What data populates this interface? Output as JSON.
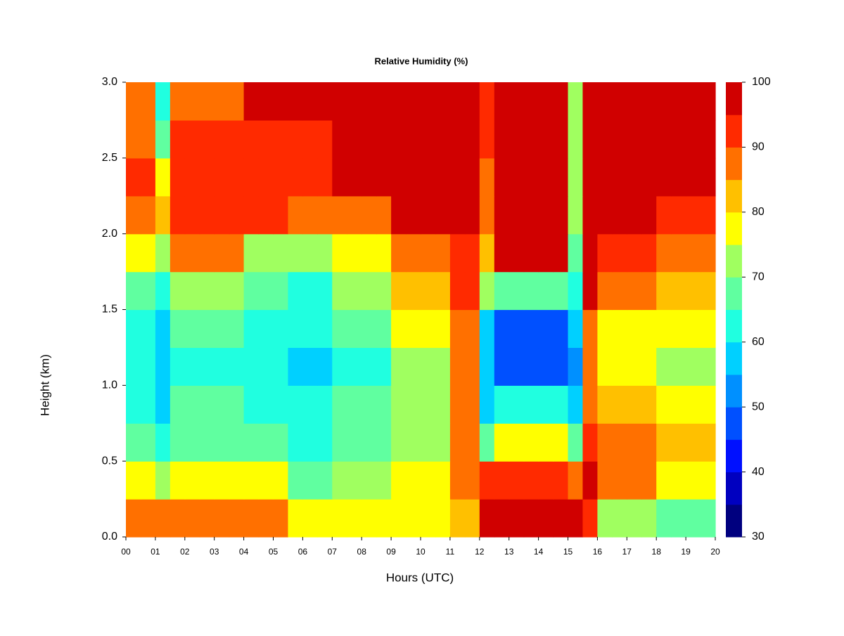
{
  "chart_data": {
    "type": "contour",
    "title": "Relative Humidity (%)",
    "x_label": "Hours (UTC)",
    "y_label": "Height (km)",
    "xlim": [
      0,
      20
    ],
    "ylim": [
      0,
      3
    ],
    "xticks": [
      {
        "value": 0,
        "label": "00"
      },
      {
        "value": 1,
        "label": "01"
      },
      {
        "value": 2,
        "label": "02"
      },
      {
        "value": 3,
        "label": "03"
      },
      {
        "value": 4,
        "label": "04"
      },
      {
        "value": 5,
        "label": "05"
      },
      {
        "value": 6,
        "label": "06"
      },
      {
        "value": 7,
        "label": "07"
      },
      {
        "value": 8,
        "label": "08"
      },
      {
        "value": 9,
        "label": "09"
      },
      {
        "value": 10,
        "label": "10"
      },
      {
        "value": 11,
        "label": "11"
      },
      {
        "value": 12,
        "label": "12"
      },
      {
        "value": 13,
        "label": "13"
      },
      {
        "value": 14,
        "label": "14"
      },
      {
        "value": 15,
        "label": "15"
      },
      {
        "value": 16,
        "label": "16"
      },
      {
        "value": 17,
        "label": "17"
      },
      {
        "value": 18,
        "label": "18"
      },
      {
        "value": 19,
        "label": "19"
      },
      {
        "value": 20,
        "label": "20"
      }
    ],
    "yticks": [
      {
        "value": 0,
        "label": "0.0"
      },
      0.5,
      {
        "value": 1,
        "label": "1.0"
      },
      1.5,
      {
        "value": 2,
        "label": "2.0"
      },
      2.5,
      {
        "value": 3,
        "label": "3.0"
      }
    ],
    "x": [
      0,
      0.5,
      1,
      1.5,
      2,
      2.5,
      3,
      3.5,
      4,
      4.5,
      5,
      5.5,
      6,
      6.5,
      7,
      7.5,
      8,
      8.5,
      9,
      9.5,
      10,
      10.5,
      11,
      11.5,
      12,
      12.5,
      13,
      13.5,
      14,
      14.5,
      15,
      15.5,
      16,
      16.5,
      17,
      17.5,
      18,
      18.5,
      19,
      19.5
    ],
    "y": [
      0,
      0.25,
      0.5,
      0.75,
      1,
      1.25,
      1.5,
      1.75,
      2,
      2.25,
      2.5,
      2.75
    ],
    "z": [
      [
        85,
        85,
        85,
        87,
        87,
        87,
        87,
        87,
        86,
        86,
        86,
        75,
        75,
        75,
        75,
        75,
        75,
        75,
        75,
        75,
        75,
        75,
        80,
        80,
        95,
        97,
        97,
        97,
        97,
        97,
        95,
        92,
        70,
        70,
        70,
        70,
        65,
        65,
        65,
        65
      ],
      [
        75,
        75,
        70,
        78,
        78,
        78,
        78,
        78,
        75,
        75,
        75,
        68,
        68,
        68,
        72,
        72,
        72,
        72,
        78,
        78,
        78,
        78,
        85,
        85,
        90,
        90,
        90,
        90,
        90,
        90,
        88,
        97,
        85,
        85,
        85,
        85,
        78,
        78,
        78,
        78
      ],
      [
        65,
        65,
        60,
        68,
        68,
        68,
        68,
        68,
        65,
        65,
        65,
        62,
        62,
        62,
        68,
        68,
        68,
        68,
        73,
        73,
        73,
        73,
        88,
        88,
        65,
        78,
        78,
        78,
        78,
        78,
        65,
        90,
        88,
        88,
        88,
        88,
        80,
        80,
        80,
        80
      ],
      [
        63,
        63,
        58,
        65,
        65,
        65,
        65,
        65,
        62,
        62,
        62,
        60,
        60,
        60,
        65,
        65,
        65,
        65,
        72,
        72,
        72,
        72,
        88,
        88,
        57,
        60,
        60,
        60,
        60,
        60,
        55,
        85,
        80,
        80,
        80,
        80,
        75,
        75,
        75,
        75
      ],
      [
        62,
        62,
        57,
        64,
        64,
        64,
        64,
        64,
        61,
        61,
        61,
        59,
        59,
        59,
        64,
        64,
        64,
        64,
        72,
        72,
        72,
        72,
        87,
        87,
        55,
        45,
        45,
        45,
        45,
        45,
        52,
        85,
        75,
        75,
        75,
        75,
        72,
        72,
        72,
        72
      ],
      [
        64,
        64,
        58,
        66,
        66,
        66,
        66,
        66,
        62,
        62,
        62,
        60,
        60,
        60,
        66,
        66,
        66,
        66,
        75,
        75,
        75,
        75,
        88,
        88,
        55,
        48,
        48,
        48,
        48,
        48,
        55,
        87,
        77,
        77,
        77,
        77,
        75,
        75,
        75,
        75
      ],
      [
        67,
        67,
        60,
        72,
        72,
        72,
        72,
        72,
        65,
        65,
        65,
        63,
        63,
        63,
        70,
        70,
        70,
        70,
        80,
        80,
        80,
        80,
        90,
        90,
        70,
        65,
        65,
        65,
        65,
        65,
        62,
        95,
        88,
        88,
        88,
        88,
        82,
        82,
        82,
        82
      ],
      [
        75,
        75,
        70,
        85,
        85,
        85,
        85,
        85,
        72,
        72,
        72,
        70,
        70,
        70,
        75,
        75,
        75,
        75,
        88,
        88,
        88,
        88,
        93,
        93,
        80,
        95,
        95,
        95,
        95,
        95,
        65,
        98,
        90,
        90,
        90,
        90,
        85,
        85,
        85,
        85
      ],
      [
        88,
        88,
        80,
        93,
        93,
        93,
        93,
        93,
        90,
        90,
        90,
        85,
        85,
        85,
        85,
        85,
        85,
        85,
        97,
        97,
        97,
        97,
        98,
        98,
        85,
        98,
        98,
        98,
        98,
        98,
        70,
        98,
        98,
        98,
        98,
        98,
        92,
        92,
        92,
        92
      ],
      [
        90,
        90,
        75,
        94,
        94,
        94,
        94,
        94,
        92,
        92,
        92,
        90,
        90,
        90,
        95,
        95,
        95,
        95,
        98,
        98,
        98,
        98,
        98,
        98,
        85,
        98,
        98,
        98,
        98,
        98,
        70,
        98,
        98,
        98,
        98,
        98,
        98,
        98,
        98,
        98
      ],
      [
        88,
        88,
        65,
        90,
        90,
        90,
        90,
        90,
        93,
        93,
        93,
        92,
        92,
        92,
        98,
        98,
        98,
        98,
        98,
        98,
        98,
        98,
        98,
        98,
        90,
        98,
        98,
        98,
        98,
        98,
        70,
        98,
        98,
        98,
        98,
        98,
        98,
        98,
        98,
        98
      ],
      [
        86,
        86,
        60,
        88,
        88,
        88,
        88,
        88,
        95,
        95,
        95,
        95,
        95,
        95,
        98,
        98,
        98,
        98,
        98,
        98,
        98,
        98,
        98,
        98,
        90,
        98,
        98,
        98,
        98,
        98,
        70,
        98,
        98,
        98,
        98,
        98,
        98,
        98,
        98,
        98
      ]
    ],
    "levels": [
      30,
      35,
      40,
      45,
      50,
      55,
      60,
      65,
      70,
      75,
      80,
      85,
      90,
      95,
      100
    ],
    "colors": [
      "#00007f",
      "#0000c0",
      "#0010ff",
      "#0050ff",
      "#0090ff",
      "#00d0ff",
      "#20ffe0",
      "#60ffa0",
      "#a0ff60",
      "#ffff00",
      "#ffc000",
      "#ff7000",
      "#ff2a00",
      "#d00000",
      "#7f0000"
    ],
    "colorbar_lim": [
      30,
      100
    ],
    "colorbar_ticks": [
      30,
      40,
      50,
      60,
      70,
      80,
      90,
      100
    ]
  }
}
